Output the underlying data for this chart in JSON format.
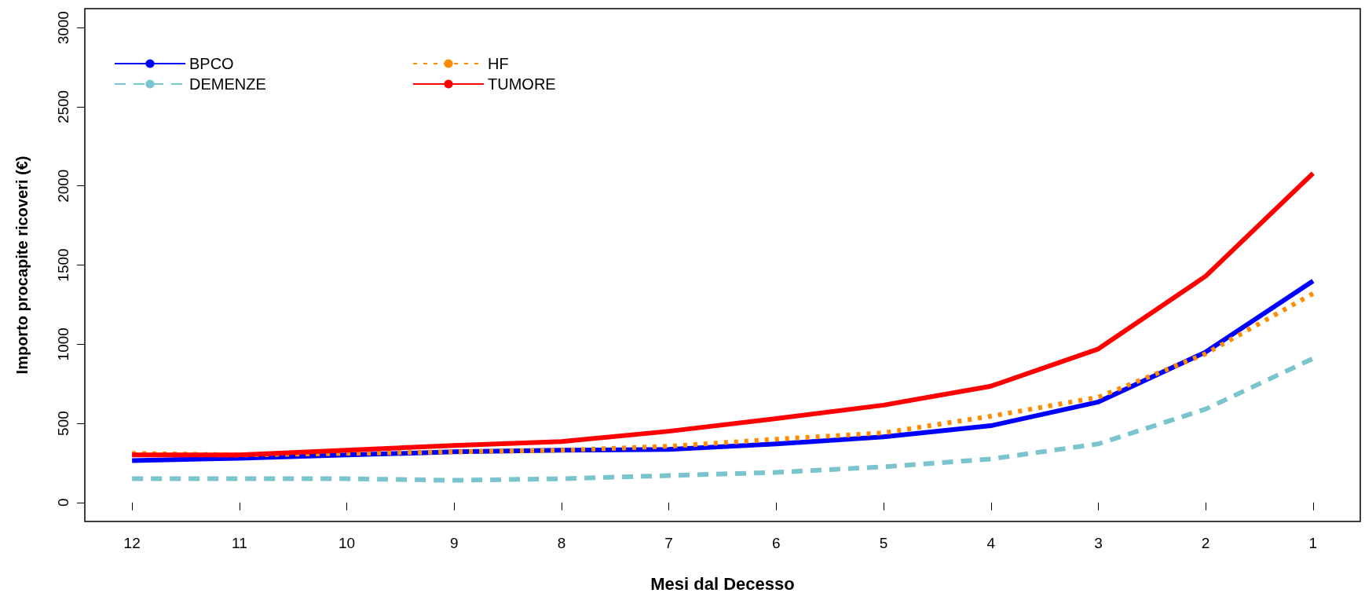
{
  "chart_data": {
    "type": "line",
    "xlabel": "Mesi dal Decesso",
    "ylabel": "Importo procapite ricoveri (€)",
    "x": [
      12,
      11,
      10,
      9,
      8,
      7,
      6,
      5,
      4,
      3,
      2,
      1
    ],
    "xlim": [
      12.44,
      0.56
    ],
    "xticks": [
      12,
      11,
      10,
      9,
      8,
      7,
      6,
      5,
      4,
      3,
      2,
      1
    ],
    "ylim": [
      -120,
      3120
    ],
    "yticks": [
      0,
      500,
      1000,
      1500,
      2000,
      2500,
      3000
    ],
    "grid": false,
    "legend": "top left",
    "marker": "none",
    "series": [
      {
        "name": "BPCO",
        "color": "#0000ff",
        "line_style": "solid",
        "values": [
          265,
          280,
          300,
          320,
          330,
          335,
          370,
          415,
          485,
          635,
          950,
          1400
        ]
      },
      {
        "name": "HF",
        "color": "#ff8c00",
        "line_style": "dotted",
        "values": [
          310,
          300,
          310,
          320,
          330,
          355,
          400,
          440,
          545,
          665,
          940,
          1320
        ]
      },
      {
        "name": "DEMENZE",
        "color": "#7ac5cd",
        "line_style": "dashed",
        "values": [
          150,
          150,
          150,
          140,
          150,
          170,
          190,
          225,
          275,
          370,
          590,
          910
        ]
      },
      {
        "name": "TUMORE",
        "color": "#ff0000",
        "line_style": "solid",
        "values": [
          300,
          300,
          330,
          360,
          385,
          450,
          530,
          615,
          735,
          970,
          1430,
          2080
        ]
      }
    ]
  }
}
